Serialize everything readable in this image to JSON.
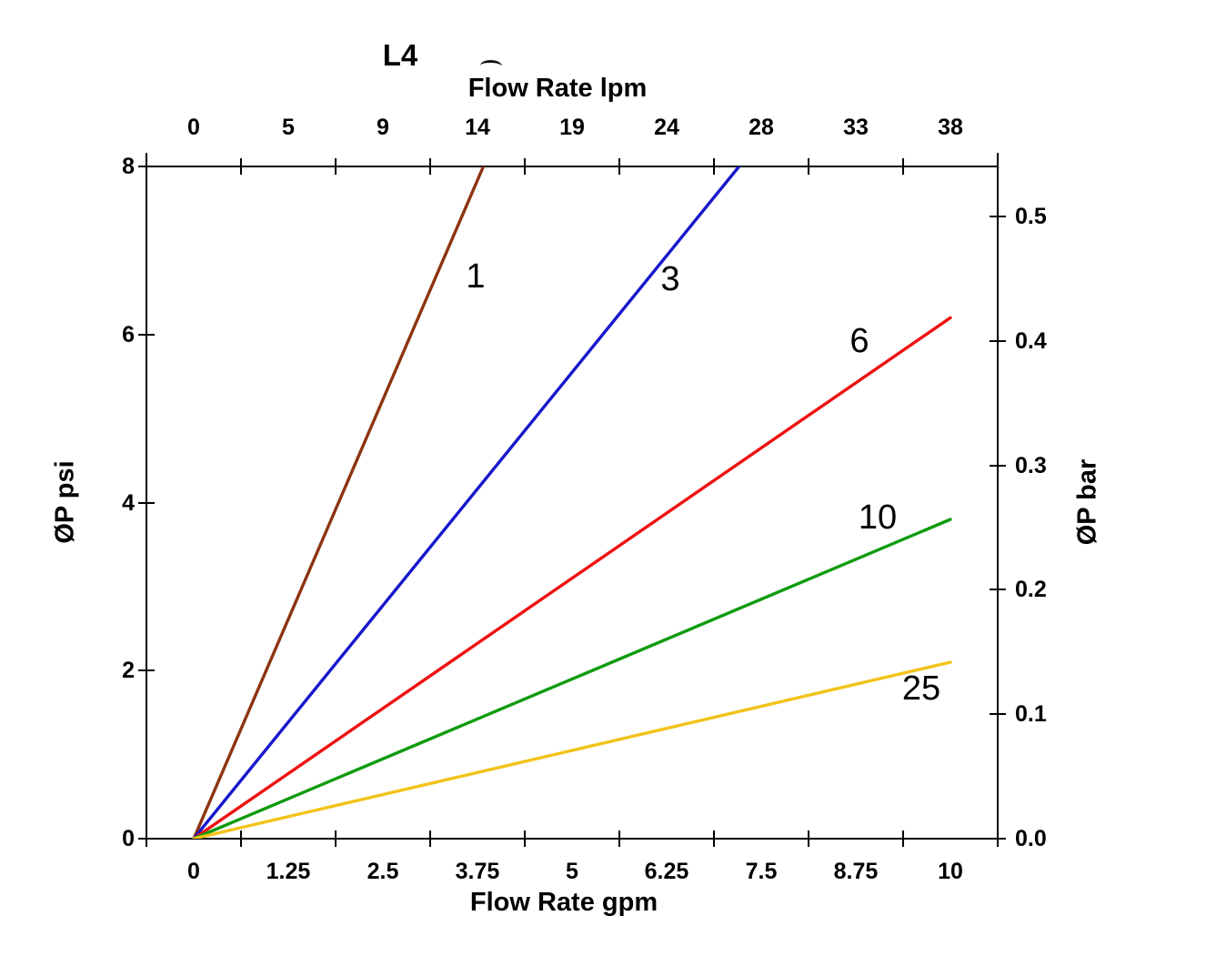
{
  "title": "L4",
  "top_axis": {
    "title": "Flow Rate lpm",
    "ticks": [
      "0",
      "5",
      "9",
      "14",
      "19",
      "24",
      "28",
      "33",
      "38"
    ]
  },
  "bottom_axis": {
    "title": "Flow Rate gpm",
    "ticks": [
      "0",
      "1.25",
      "2.5",
      "3.75",
      "5",
      "6.25",
      "7.5",
      "8.75",
      "10"
    ]
  },
  "left_axis": {
    "title": "ØP psi",
    "ticks": [
      "8",
      "6",
      "4",
      "2",
      "0"
    ]
  },
  "right_axis": {
    "title": "ØP bar",
    "ticks": [
      "0.5",
      "0.4",
      "0.3",
      "0.2",
      "0.1",
      "0.0"
    ]
  },
  "chart_data": {
    "type": "line",
    "title": "L4",
    "xlabel": "Flow Rate gpm",
    "xlabel_secondary": "Flow Rate lpm",
    "ylabel": "ØP psi",
    "ylabel_secondary": "ØP bar",
    "x_range_gpm": [
      0,
      10
    ],
    "ylim_psi": [
      0,
      8
    ],
    "right_axis_ticks_bar": [
      0.0,
      0.1,
      0.2,
      0.3,
      0.4,
      0.5
    ],
    "x_ticks_gpm": [
      0,
      1.25,
      2.5,
      3.75,
      5,
      6.25,
      7.5,
      8.75,
      10
    ],
    "x_ticks_lpm": [
      0,
      5,
      9,
      14,
      19,
      24,
      28,
      33,
      38
    ],
    "grid": false,
    "legend": "inline labels next to each line",
    "note_visible_geometry": "all lines are straight, start at origin (0 gpm, 0 psi); lines 1 and 3 are clipped at the 8 psi top of the plot (reach 8 psi at ~3.8 and ~7.2 gpm)",
    "series": [
      {
        "label": "1",
        "color": "#8C3410",
        "slope_psi_per_gpm": 2.09,
        "y_psi_at_10gpm": 20.9
      },
      {
        "label": "3",
        "color": "#1717CD",
        "slope_psi_per_gpm": 1.11,
        "y_psi_at_10gpm": 11.1
      },
      {
        "label": "6",
        "color": "#EE1111",
        "slope_psi_per_gpm": 0.62,
        "y_psi_at_10gpm": 6.2
      },
      {
        "label": "10",
        "color": "#0F9B0F",
        "slope_psi_per_gpm": 0.38,
        "y_psi_at_10gpm": 3.8
      },
      {
        "label": "25",
        "color": "#F2C318",
        "slope_psi_per_gpm": 0.21,
        "y_psi_at_10gpm": 2.1
      }
    ]
  }
}
